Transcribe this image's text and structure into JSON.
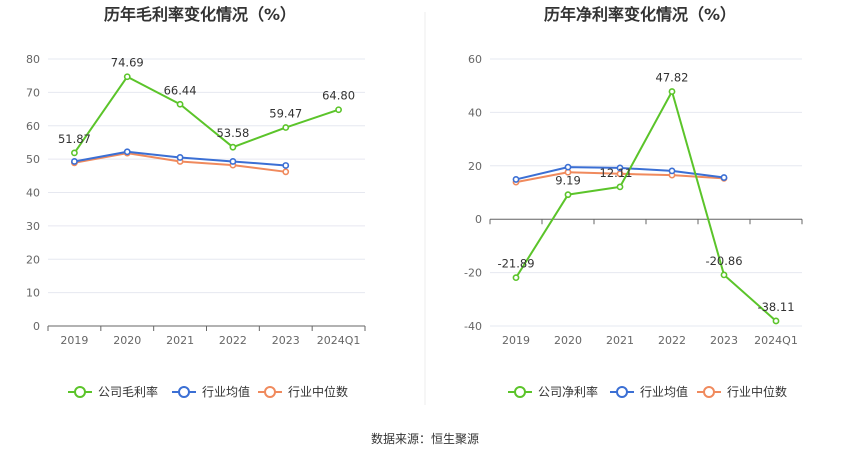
{
  "source_label": "数据来源：恒生聚源",
  "colors": {
    "company": "#5bc42a",
    "industry_avg": "#3b6fd4",
    "industry_median": "#f08a5d",
    "grid": "#e6e8f0"
  },
  "chart_data": [
    {
      "type": "line",
      "title": "历年毛利率变化情况（%）",
      "categories": [
        "2019",
        "2020",
        "2021",
        "2022",
        "2023",
        "2024Q1"
      ],
      "ylim": [
        0,
        80
      ],
      "yticks": [
        0,
        10,
        20,
        30,
        40,
        50,
        60,
        70,
        80
      ],
      "legend_position": "bottom",
      "series": [
        {
          "key": "company",
          "name": "公司毛利率",
          "values": [
            51.87,
            74.69,
            66.44,
            53.58,
            59.47,
            64.8
          ],
          "labels": [
            "51.87",
            "74.69",
            "66.44",
            "53.58",
            "59.47",
            "64.80"
          ]
        },
        {
          "key": "industry_avg",
          "name": "行业均值",
          "values": [
            49.3,
            52.2,
            50.5,
            49.3,
            48.1,
            null
          ]
        },
        {
          "key": "industry_median",
          "name": "行业中位数",
          "values": [
            48.9,
            51.8,
            49.3,
            48.2,
            46.2,
            null
          ]
        }
      ]
    },
    {
      "type": "line",
      "title": "历年净利率变化情况（%）",
      "categories": [
        "2019",
        "2020",
        "2021",
        "2022",
        "2023",
        "2024Q1"
      ],
      "ylim": [
        -40,
        60
      ],
      "yticks": [
        -40,
        -20,
        0,
        20,
        40,
        60
      ],
      "legend_position": "bottom",
      "series": [
        {
          "key": "company",
          "name": "公司净利率",
          "values": [
            -21.89,
            9.19,
            12.11,
            47.82,
            -20.86,
            -38.11
          ],
          "labels": [
            "-21.89",
            "9.19",
            "12.11",
            "47.82",
            "-20.86",
            "-38.11"
          ]
        },
        {
          "key": "industry_avg",
          "name": "行业均值",
          "values": [
            14.9,
            19.5,
            19.2,
            18.1,
            15.6,
            null
          ]
        },
        {
          "key": "industry_median",
          "name": "行业中位数",
          "values": [
            13.9,
            17.6,
            17.0,
            16.5,
            15.3,
            null
          ]
        }
      ]
    }
  ]
}
